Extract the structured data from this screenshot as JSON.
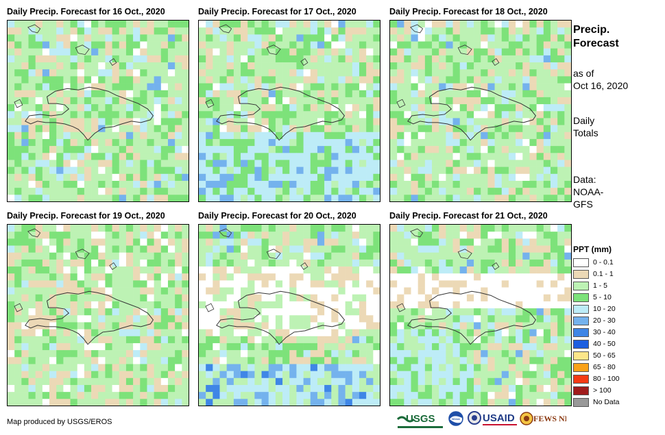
{
  "panels": [
    {
      "title": "Daily Precip. Forecast for 16 Oct., 2020",
      "seed": 11,
      "bias": "mixed"
    },
    {
      "title": "Daily Precip. Forecast for 17 Oct., 2020",
      "seed": 23,
      "bias": "wetsouth"
    },
    {
      "title": "Daily Precip. Forecast for 18 Oct., 2020",
      "seed": 37,
      "bias": "mixed"
    },
    {
      "title": "Daily Precip. Forecast for 19 Oct., 2020",
      "seed": 41,
      "bias": "greenwest"
    },
    {
      "title": "Daily Precip. Forecast for 20 Oct., 2020",
      "seed": 53,
      "bias": "drynorth"
    },
    {
      "title": "Daily Precip. Forecast for 21 Oct., 2020",
      "seed": 67,
      "bias": "dryband"
    }
  ],
  "sidebar": {
    "title_line1": "Precip.",
    "title_line2": "Forecast",
    "asof_line1": "as of",
    "asof_line2": "Oct 16, 2020",
    "totals_line1": "Daily",
    "totals_line2": "Totals",
    "data_line1": "Data:",
    "data_line2": "NOAA-",
    "data_line3": "GFS"
  },
  "legend": {
    "title": "PPT (mm)",
    "items": [
      {
        "label": "0 - 0.1",
        "color": "#ffffff"
      },
      {
        "label": "0.1 - 1",
        "color": "#ecd9b6"
      },
      {
        "label": "1 - 5",
        "color": "#bdf2b4"
      },
      {
        "label": "5 - 10",
        "color": "#7de27a"
      },
      {
        "label": "10 - 20",
        "color": "#bdecf7"
      },
      {
        "label": "20 - 30",
        "color": "#74b2ed"
      },
      {
        "label": "30 - 40",
        "color": "#3f86e6"
      },
      {
        "label": "40 - 50",
        "color": "#1c5fe0"
      },
      {
        "label": "50 - 65",
        "color": "#fde68a"
      },
      {
        "label": "65 - 80",
        "color": "#f9a21a"
      },
      {
        "label": "80 - 100",
        "color": "#f43a13"
      },
      {
        "label": "> 100",
        "color": "#a01c1c"
      },
      {
        "label": "No Data",
        "color": "#999999"
      }
    ]
  },
  "credit": "Map produced by USGS/EROS",
  "logos": [
    "USGS",
    "NOAA",
    "USAID",
    "FEWS NET"
  ]
}
